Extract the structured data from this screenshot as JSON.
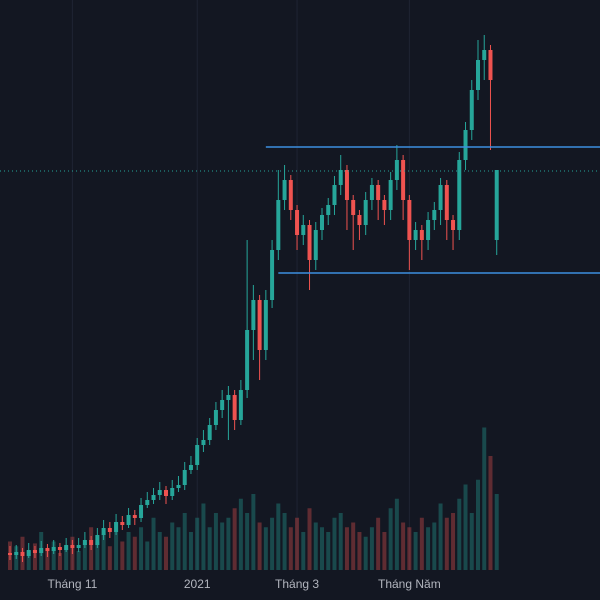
{
  "chart_data": {
    "type": "candlestick",
    "background": "#131722",
    "up_color": "#26a69a",
    "down_color": "#ef5350",
    "grid": true,
    "ylim": [
      0,
      570
    ],
    "volume_ylim": [
      0,
      600
    ],
    "categories": [
      null,
      null,
      null,
      null,
      null,
      null,
      null,
      null,
      null,
      null,
      "Tháng 11",
      null,
      null,
      null,
      null,
      null,
      null,
      null,
      null,
      null,
      null,
      null,
      null,
      null,
      null,
      null,
      null,
      null,
      null,
      null,
      "2021",
      null,
      null,
      null,
      null,
      null,
      null,
      null,
      null,
      null,
      null,
      null,
      null,
      null,
      null,
      null,
      "Tháng 3",
      null,
      null,
      null,
      null,
      null,
      null,
      null,
      null,
      null,
      null,
      null,
      null,
      null,
      null,
      null,
      null,
      null,
      "Tháng Năm",
      null,
      null,
      null,
      null,
      null,
      null,
      null,
      null,
      null,
      null,
      null,
      null,
      null,
      null
    ],
    "opens": [
      17,
      15,
      18,
      14,
      20,
      17,
      22,
      19,
      23,
      20,
      25,
      22,
      25,
      30,
      25,
      35,
      42,
      38,
      48,
      45,
      55,
      52,
      65,
      70,
      75,
      80,
      74,
      82,
      85,
      100,
      105,
      125,
      130,
      145,
      160,
      170,
      175,
      150,
      180,
      240,
      270,
      220,
      270,
      320,
      370,
      390,
      360,
      335,
      345,
      310,
      340,
      355,
      365,
      385,
      400,
      370,
      355,
      345,
      370,
      385,
      370,
      360,
      390,
      410,
      370,
      330,
      340,
      330,
      350,
      360,
      385,
      350,
      340,
      410,
      440,
      480,
      510,
      520,
      330
    ],
    "highs": [
      24,
      25,
      22,
      27,
      24,
      29,
      26,
      30,
      27,
      32,
      30,
      32,
      38,
      34,
      42,
      50,
      48,
      56,
      54,
      62,
      60,
      72,
      78,
      82,
      88,
      84,
      90,
      94,
      108,
      114,
      132,
      140,
      152,
      168,
      180,
      184,
      180,
      190,
      330,
      285,
      275,
      280,
      330,
      400,
      405,
      395,
      365,
      355,
      350,
      348,
      362,
      372,
      394,
      415,
      405,
      375,
      360,
      378,
      392,
      390,
      375,
      398,
      425,
      415,
      375,
      348,
      345,
      358,
      368,
      392,
      390,
      355,
      418,
      448,
      490,
      530,
      535,
      525,
      400
    ],
    "lows": [
      10,
      11,
      8,
      12,
      12,
      14,
      13,
      16,
      14,
      18,
      16,
      18,
      22,
      20,
      22,
      30,
      32,
      35,
      40,
      42,
      45,
      48,
      62,
      66,
      70,
      66,
      70,
      78,
      80,
      96,
      100,
      118,
      125,
      140,
      152,
      130,
      140,
      145,
      172,
      210,
      190,
      210,
      262,
      310,
      360,
      350,
      320,
      325,
      280,
      300,
      330,
      345,
      355,
      375,
      340,
      320,
      330,
      335,
      360,
      350,
      345,
      350,
      380,
      350,
      300,
      320,
      310,
      320,
      340,
      345,
      330,
      320,
      330,
      400,
      430,
      470,
      490,
      420,
      315
    ],
    "closes": [
      15,
      18,
      14,
      20,
      17,
      22,
      19,
      23,
      20,
      25,
      22,
      25,
      30,
      25,
      35,
      42,
      38,
      48,
      45,
      55,
      52,
      65,
      70,
      75,
      80,
      74,
      82,
      85,
      100,
      105,
      125,
      130,
      145,
      160,
      170,
      175,
      150,
      180,
      240,
      270,
      220,
      270,
      320,
      370,
      390,
      360,
      335,
      345,
      310,
      340,
      355,
      365,
      385,
      400,
      370,
      355,
      345,
      370,
      385,
      370,
      360,
      390,
      410,
      370,
      330,
      340,
      330,
      350,
      360,
      385,
      350,
      340,
      410,
      440,
      480,
      510,
      520,
      490,
      400
    ],
    "volumes": [
      30,
      25,
      35,
      20,
      28,
      40,
      22,
      30,
      18,
      25,
      35,
      20,
      28,
      45,
      30,
      38,
      25,
      50,
      30,
      40,
      35,
      45,
      30,
      55,
      40,
      35,
      50,
      45,
      60,
      40,
      55,
      70,
      45,
      60,
      50,
      55,
      65,
      75,
      60,
      80,
      50,
      45,
      55,
      70,
      60,
      45,
      55,
      40,
      65,
      50,
      45,
      40,
      55,
      60,
      45,
      50,
      40,
      35,
      45,
      55,
      40,
      65,
      75,
      50,
      45,
      40,
      55,
      45,
      50,
      70,
      55,
      60,
      75,
      90,
      60,
      95,
      150,
      120,
      80
    ],
    "levels": [
      {
        "value": 423,
        "start": 41,
        "color": "#3d8fe0"
      },
      {
        "value": 297,
        "start": 43,
        "color": "#3d8fe0"
      }
    ],
    "price_line": {
      "value": 399,
      "color": "#26a69a"
    }
  }
}
